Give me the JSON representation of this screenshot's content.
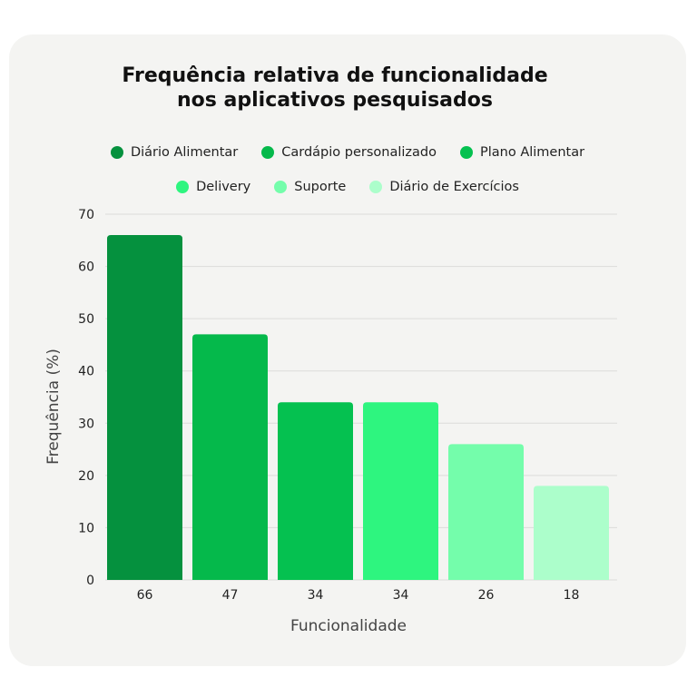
{
  "chart_data": {
    "type": "bar",
    "title_line1": "Frequência relativa de funcionalidade",
    "title_line2": "nos aplicativos pesquisados",
    "xlabel": "Funcionalidade",
    "ylabel": "Frequência (%)",
    "ylim": [
      0,
      70
    ],
    "yticks": [
      "0",
      "10",
      "20",
      "30",
      "40",
      "50",
      "60",
      "70"
    ],
    "grid": true,
    "legend_position": "top",
    "categories": [
      "Diário Alimentar",
      "Cardápio personalizado",
      "Plano Alimentar",
      "Delivery",
      "Suporte",
      "Diário de Exercícios"
    ],
    "values": [
      66,
      47,
      34,
      34,
      26,
      18
    ],
    "x_tick_labels": [
      "66",
      "47",
      "34",
      "34",
      "26",
      "18"
    ],
    "colors": [
      "#05913e",
      "#05b94b",
      "#05c150",
      "#2ef57f",
      "#74fdab",
      "#acfecb"
    ]
  }
}
